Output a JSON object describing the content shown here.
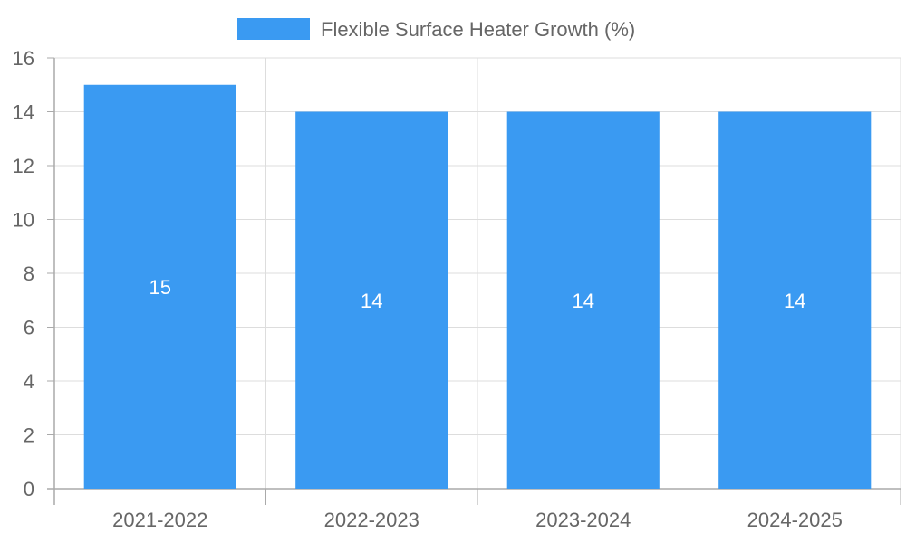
{
  "chart_data": {
    "type": "bar",
    "categories": [
      "2021-2022",
      "2022-2023",
      "2023-2024",
      "2024-2025"
    ],
    "series": [
      {
        "name": "Flexible Surface Heater Growth (%)",
        "values": [
          15,
          14,
          14,
          14
        ],
        "color": "#3a9af2"
      }
    ],
    "ylim": [
      0,
      16
    ],
    "yticks": [
      "0",
      "2",
      "4",
      "6",
      "8",
      "10",
      "12",
      "14",
      "16"
    ],
    "grid": true,
    "legend": "top-center",
    "data_labels": [
      "15",
      "14",
      "14",
      "14"
    ],
    "title": "",
    "xlabel": "",
    "ylabel": ""
  },
  "colors": {
    "grid": "#dddddd",
    "axis": "#aaaaaa",
    "text": "#666666"
  }
}
